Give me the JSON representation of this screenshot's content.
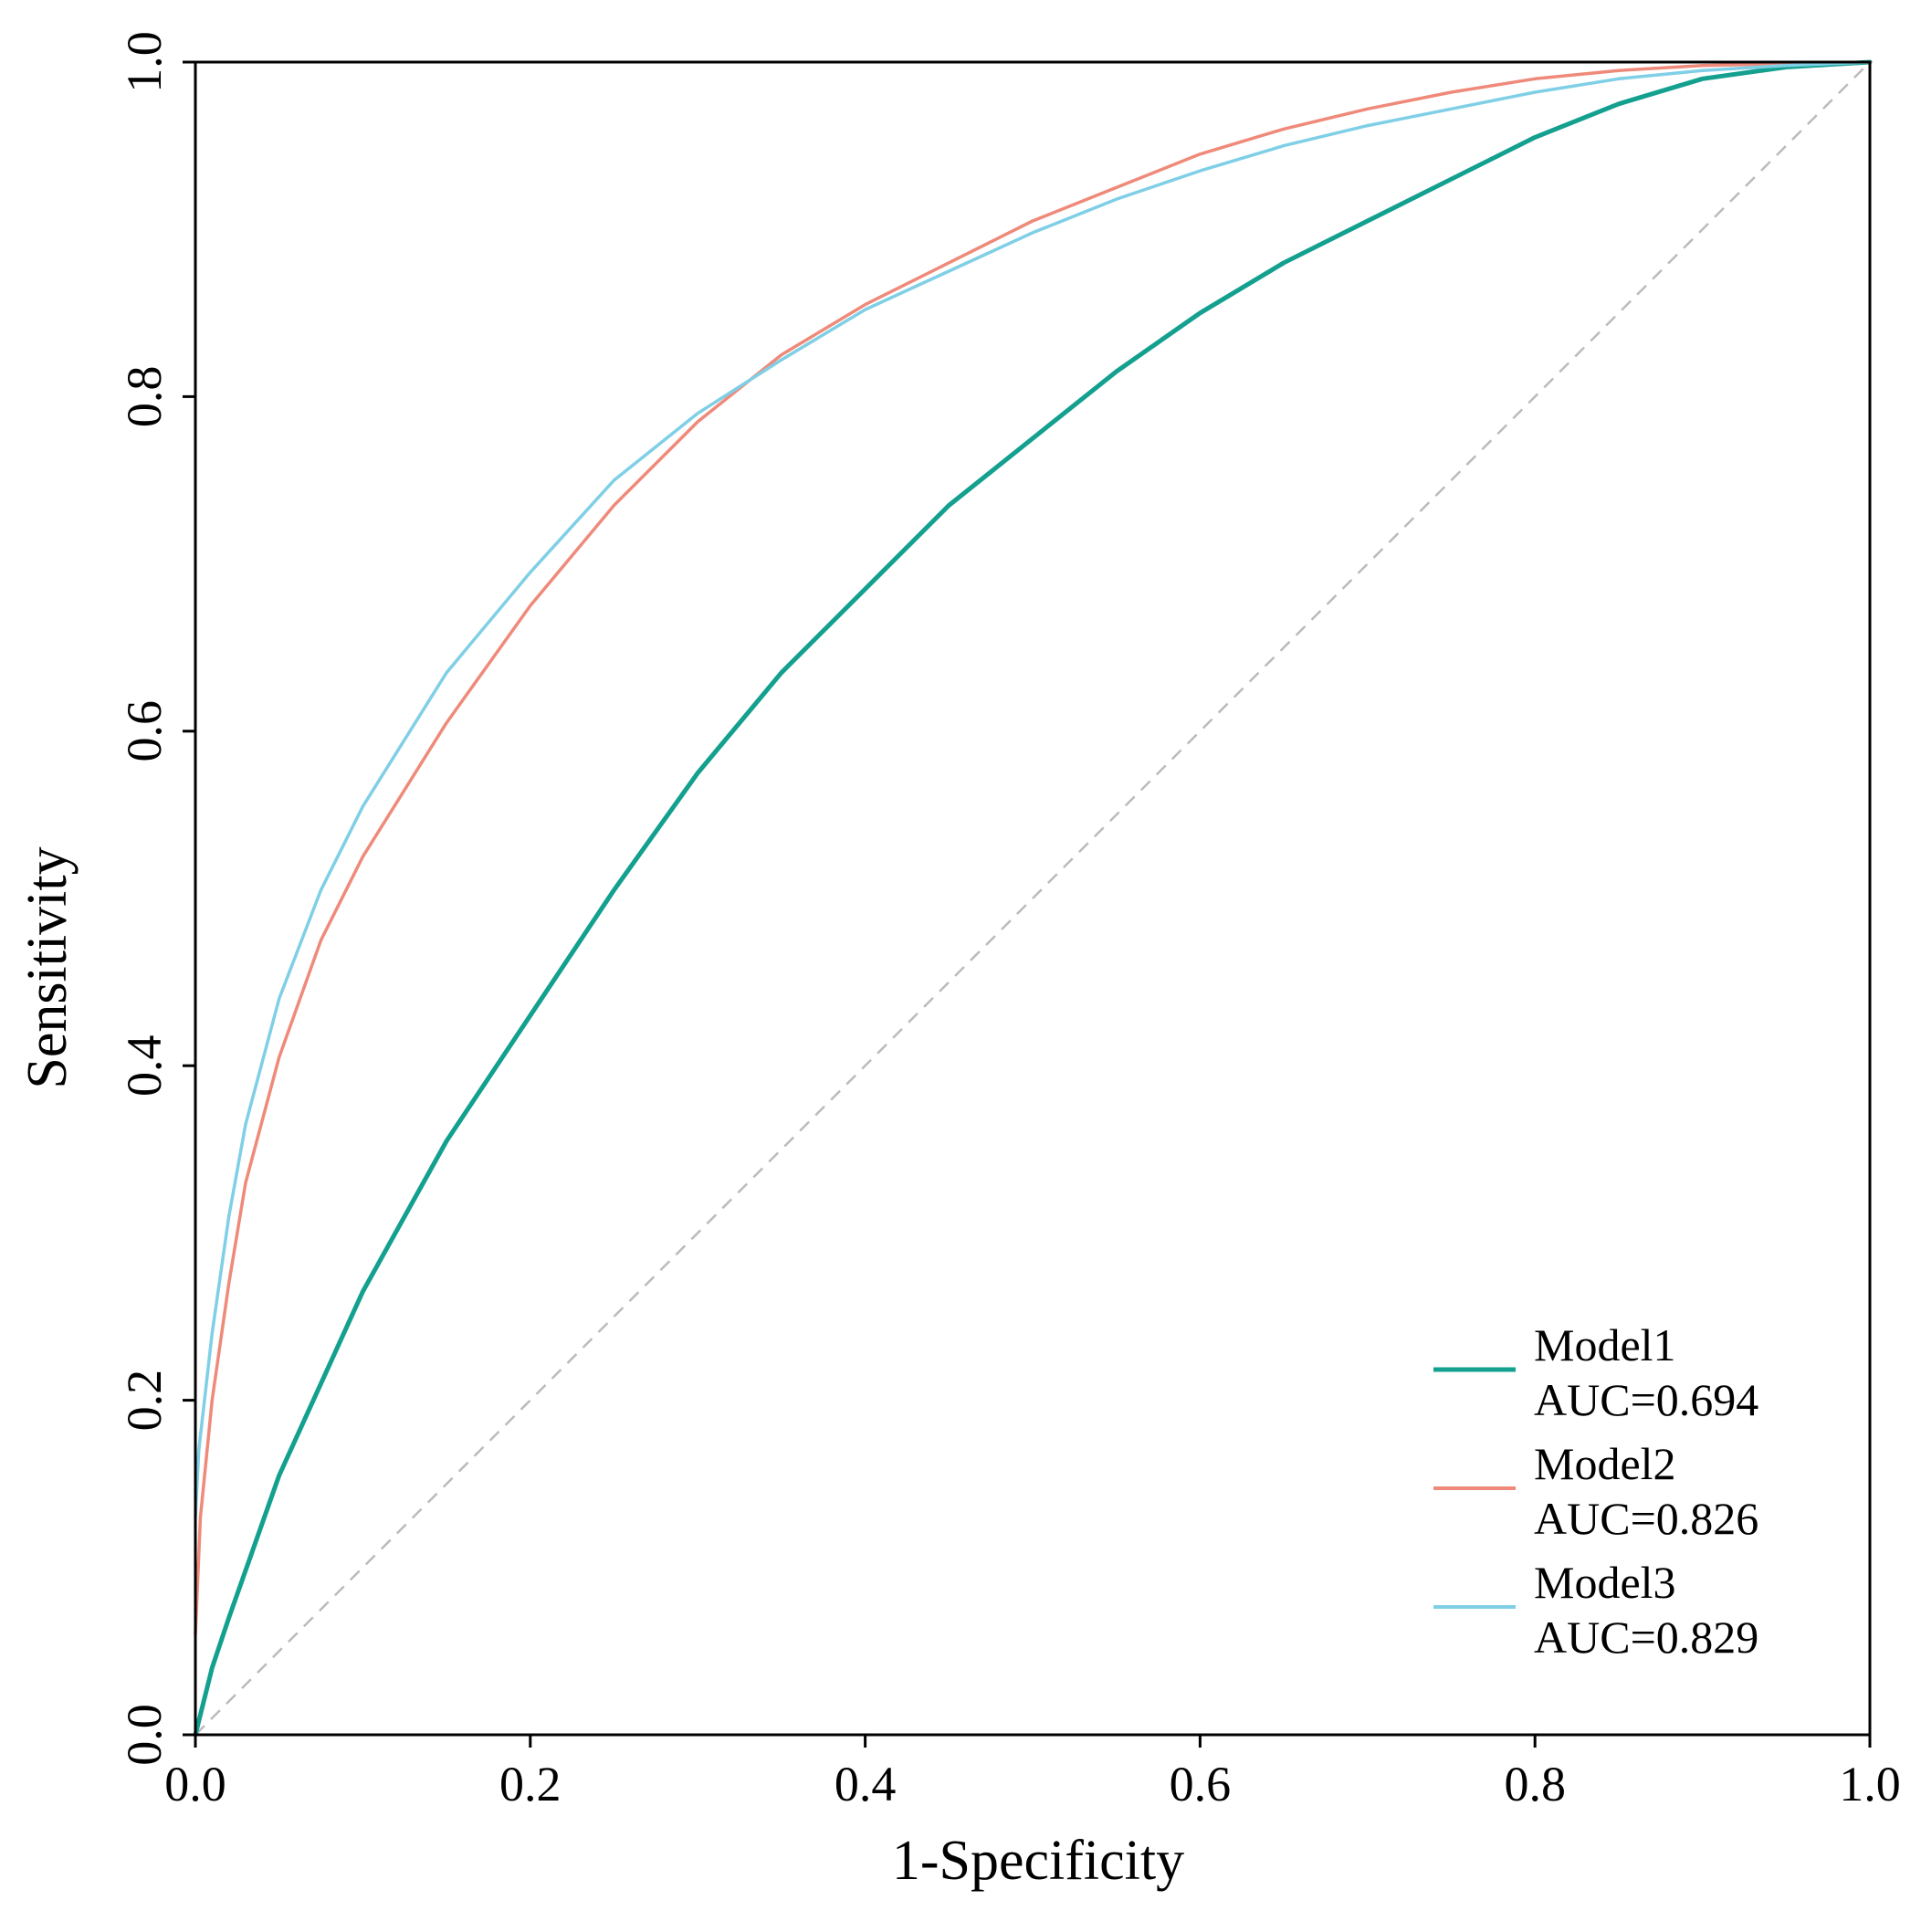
{
  "chart_data": {
    "type": "line",
    "title": "",
    "xlabel": "1-Specificity",
    "ylabel": "Sensitivity",
    "xlim": [
      0.0,
      1.0
    ],
    "ylim": [
      0.0,
      1.0
    ],
    "xticks": [
      "0.0",
      "0.2",
      "0.4",
      "0.6",
      "0.8",
      "1.0"
    ],
    "yticks": [
      "0.0",
      "0.2",
      "0.4",
      "0.6",
      "0.8",
      "1.0"
    ],
    "grid": false,
    "legend_position": "bottom-right",
    "reference_line": {
      "x": [
        0,
        1
      ],
      "y": [
        0,
        1
      ],
      "style": "dashed",
      "color": "#bbbbbb"
    },
    "series": [
      {
        "name": "Model1",
        "auc_label": "AUC=0.694",
        "color": "#13a08f",
        "x": [
          0,
          0.01,
          0.02,
          0.05,
          0.1,
          0.15,
          0.2,
          0.25,
          0.3,
          0.35,
          0.4,
          0.45,
          0.5,
          0.55,
          0.6,
          0.65,
          0.7,
          0.75,
          0.8,
          0.85,
          0.9,
          0.95,
          1.0
        ],
        "y": [
          0,
          0.04,
          0.07,
          0.155,
          0.265,
          0.355,
          0.43,
          0.505,
          0.575,
          0.635,
          0.685,
          0.735,
          0.775,
          0.815,
          0.85,
          0.88,
          0.905,
          0.93,
          0.955,
          0.975,
          0.99,
          0.997,
          1.0
        ]
      },
      {
        "name": "Model2",
        "auc_label": "AUC=0.826",
        "color": "#ef8a7a",
        "x": [
          0,
          0.003,
          0.01,
          0.02,
          0.03,
          0.05,
          0.075,
          0.1,
          0.15,
          0.2,
          0.25,
          0.3,
          0.35,
          0.4,
          0.45,
          0.5,
          0.55,
          0.6,
          0.65,
          0.7,
          0.75,
          0.8,
          0.85,
          0.9,
          0.95,
          1.0
        ],
        "y": [
          0.06,
          0.13,
          0.2,
          0.27,
          0.33,
          0.405,
          0.475,
          0.525,
          0.605,
          0.675,
          0.735,
          0.785,
          0.825,
          0.855,
          0.88,
          0.905,
          0.925,
          0.945,
          0.96,
          0.972,
          0.982,
          0.99,
          0.995,
          0.998,
          0.999,
          1.0
        ]
      },
      {
        "name": "Model3",
        "auc_label": "AUC=0.829",
        "color": "#7fcfe6",
        "x": [
          0,
          0.002,
          0.01,
          0.02,
          0.03,
          0.05,
          0.075,
          0.1,
          0.15,
          0.2,
          0.25,
          0.3,
          0.35,
          0.4,
          0.45,
          0.5,
          0.55,
          0.6,
          0.65,
          0.7,
          0.75,
          0.8,
          0.85,
          0.9,
          0.95,
          1.0
        ],
        "y": [
          0.13,
          0.17,
          0.24,
          0.31,
          0.365,
          0.44,
          0.505,
          0.555,
          0.635,
          0.695,
          0.75,
          0.79,
          0.822,
          0.852,
          0.875,
          0.898,
          0.918,
          0.935,
          0.95,
          0.962,
          0.972,
          0.982,
          0.99,
          0.995,
          0.998,
          1.0
        ]
      }
    ]
  }
}
